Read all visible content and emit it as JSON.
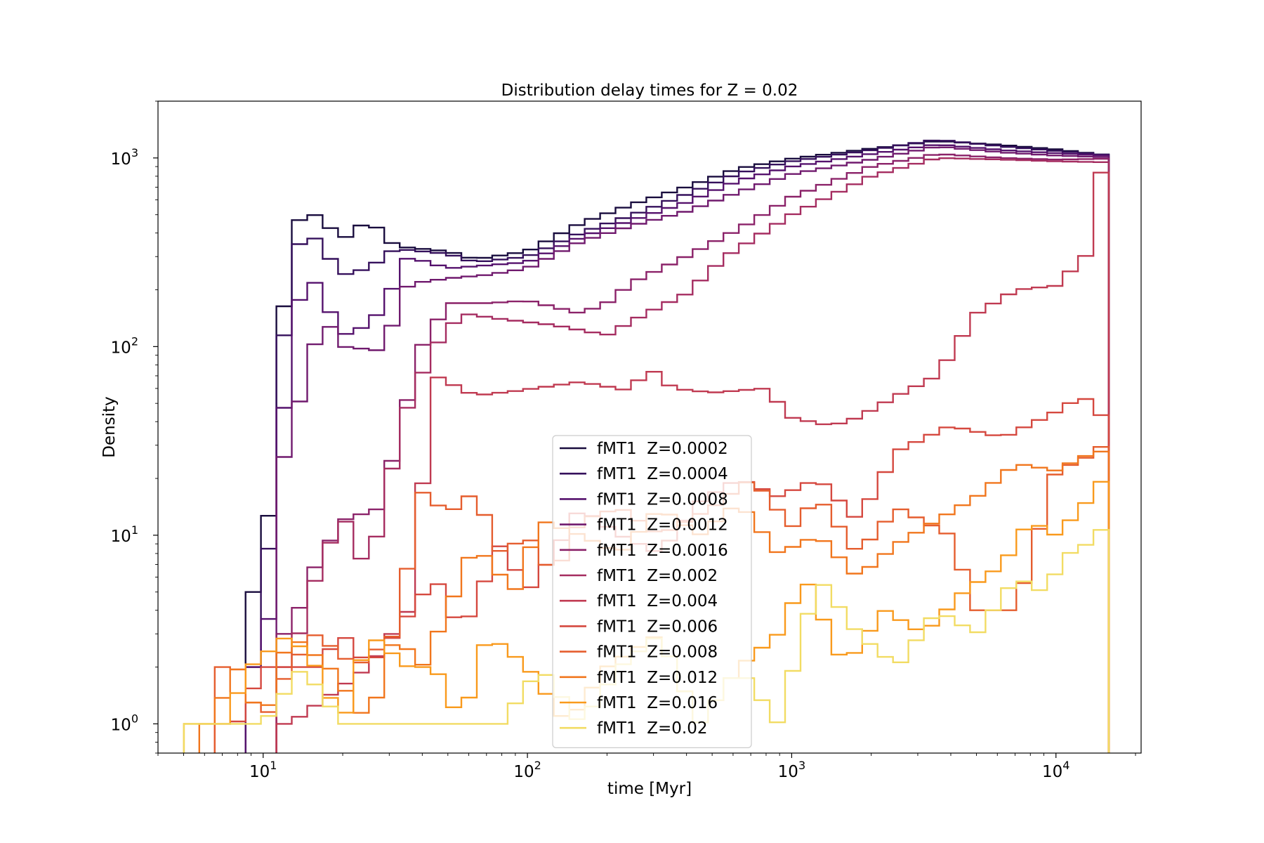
{
  "chart_data": {
    "type": "histogram-step",
    "title": "Distribution delay times for Z = 0.02",
    "xlabel": "time [Myr]",
    "ylabel": "Density",
    "xscale": "log",
    "yscale": "log",
    "xlim": [
      4.0,
      21000
    ],
    "ylim": [
      0.7,
      2000
    ],
    "x_ticks": [
      {
        "value": 10,
        "base": "10",
        "exp": "1"
      },
      {
        "value": 100,
        "base": "10",
        "exp": "2"
      },
      {
        "value": 1000,
        "base": "10",
        "exp": "3"
      },
      {
        "value": 10000,
        "base": "10",
        "exp": "4"
      }
    ],
    "y_ticks": [
      {
        "value": 1,
        "base": "10",
        "exp": "0"
      },
      {
        "value": 10,
        "base": "10",
        "exp": "1"
      },
      {
        "value": 100,
        "base": "10",
        "exp": "2"
      },
      {
        "value": 1000,
        "base": "10",
        "exp": "3"
      }
    ],
    "grid": false,
    "legend_position": "lower center",
    "bin_range_log10": [
      0.7,
      4.2
    ],
    "n_bins": 60,
    "series": [
      {
        "name": "fMT1  Z=0.0002",
        "color": "#190c3e",
        "knots": [
          [
            0.97,
            5
          ],
          [
            1.03,
            15
          ],
          [
            1.1,
            450
          ],
          [
            1.2,
            500
          ],
          [
            1.3,
            370
          ],
          [
            1.4,
            470
          ],
          [
            1.5,
            340
          ],
          [
            1.7,
            320
          ],
          [
            1.8,
            290
          ],
          [
            2.0,
            320
          ],
          [
            2.2,
            450
          ],
          [
            2.4,
            570
          ],
          [
            2.6,
            700
          ],
          [
            2.8,
            880
          ],
          [
            3.0,
            990
          ],
          [
            3.3,
            1120
          ],
          [
            3.55,
            1230
          ],
          [
            3.8,
            1170
          ],
          [
            4.0,
            1110
          ],
          [
            4.18,
            1040
          ]
        ]
      },
      {
        "name": "fMT1  Z=0.0004",
        "color": "#35105c",
        "knots": [
          [
            0.97,
            2
          ],
          [
            1.03,
            11
          ],
          [
            1.1,
            310
          ],
          [
            1.18,
            400
          ],
          [
            1.3,
            240
          ],
          [
            1.4,
            260
          ],
          [
            1.5,
            330
          ],
          [
            1.7,
            310
          ],
          [
            1.8,
            280
          ],
          [
            2.0,
            300
          ],
          [
            2.2,
            400
          ],
          [
            2.4,
            500
          ],
          [
            2.6,
            640
          ],
          [
            2.8,
            830
          ],
          [
            3.0,
            960
          ],
          [
            3.3,
            1100
          ],
          [
            3.55,
            1250
          ],
          [
            3.8,
            1150
          ],
          [
            4.0,
            1090
          ],
          [
            4.18,
            1040
          ]
        ]
      },
      {
        "name": "fMT1  Z=0.0008",
        "color": "#55126d",
        "knots": [
          [
            0.97,
            2
          ],
          [
            1.03,
            4
          ],
          [
            1.1,
            135
          ],
          [
            1.18,
            240
          ],
          [
            1.3,
            115
          ],
          [
            1.4,
            130
          ],
          [
            1.45,
            160
          ],
          [
            1.55,
            300
          ],
          [
            1.7,
            260
          ],
          [
            1.85,
            270
          ],
          [
            2.0,
            280
          ],
          [
            2.2,
            380
          ],
          [
            2.4,
            470
          ],
          [
            2.6,
            580
          ],
          [
            2.8,
            760
          ],
          [
            3.0,
            900
          ],
          [
            3.3,
            1050
          ],
          [
            3.55,
            1180
          ],
          [
            3.8,
            1100
          ],
          [
            4.0,
            1060
          ],
          [
            4.18,
            1030
          ]
        ]
      },
      {
        "name": "fMT1  Z=0.0012",
        "color": "#701a6e",
        "knots": [
          [
            1.1,
            26
          ],
          [
            1.17,
            92
          ],
          [
            1.25,
            130
          ],
          [
            1.3,
            100
          ],
          [
            1.45,
            95
          ],
          [
            1.55,
            215
          ],
          [
            1.7,
            230
          ],
          [
            1.85,
            240
          ],
          [
            2.0,
            260
          ],
          [
            2.2,
            360
          ],
          [
            2.4,
            440
          ],
          [
            2.6,
            520
          ],
          [
            2.8,
            660
          ],
          [
            3.0,
            820
          ],
          [
            3.3,
            980
          ],
          [
            3.55,
            1150
          ],
          [
            3.8,
            1070
          ],
          [
            4.0,
            1030
          ],
          [
            4.18,
            1010
          ]
        ]
      },
      {
        "name": "fMT1  Z=0.0016",
        "color": "#8b2269",
        "knots": [
          [
            1.1,
            3
          ],
          [
            1.2,
            7
          ],
          [
            1.3,
            12
          ],
          [
            1.45,
            14
          ],
          [
            1.5,
            30
          ],
          [
            1.6,
            100
          ],
          [
            1.7,
            170
          ],
          [
            1.85,
            170
          ],
          [
            2.0,
            175
          ],
          [
            2.2,
            150
          ],
          [
            2.3,
            170
          ],
          [
            2.4,
            220
          ],
          [
            2.6,
            300
          ],
          [
            2.8,
            420
          ],
          [
            3.0,
            620
          ],
          [
            3.3,
            900
          ],
          [
            3.55,
            1050
          ],
          [
            3.8,
            1000
          ],
          [
            4.0,
            980
          ],
          [
            4.18,
            990
          ]
        ]
      },
      {
        "name": "fMT1  Z=0.002",
        "color": "#a52c60",
        "knots": [
          [
            1.1,
            2
          ],
          [
            1.2,
            6
          ],
          [
            1.3,
            13
          ],
          [
            1.4,
            6
          ],
          [
            1.45,
            14
          ],
          [
            1.55,
            50
          ],
          [
            1.65,
            100
          ],
          [
            1.75,
            150
          ],
          [
            1.9,
            140
          ],
          [
            2.1,
            130
          ],
          [
            2.3,
            115
          ],
          [
            2.45,
            150
          ],
          [
            2.6,
            190
          ],
          [
            2.75,
            300
          ],
          [
            3.0,
            500
          ],
          [
            3.3,
            800
          ],
          [
            3.55,
            1000
          ],
          [
            3.8,
            980
          ],
          [
            4.0,
            960
          ],
          [
            4.18,
            950
          ]
        ]
      },
      {
        "name": "fMT1  Z=0.004",
        "color": "#c03a51",
        "knots": [
          [
            1.1,
            1
          ],
          [
            1.4,
            2
          ],
          [
            1.55,
            4
          ],
          [
            1.65,
            70
          ],
          [
            1.8,
            55
          ],
          [
            1.95,
            58
          ],
          [
            2.2,
            65
          ],
          [
            2.4,
            58
          ],
          [
            2.45,
            80
          ],
          [
            2.55,
            60
          ],
          [
            2.7,
            57
          ],
          [
            2.9,
            60
          ],
          [
            3.0,
            42
          ],
          [
            3.15,
            38
          ],
          [
            3.25,
            42
          ],
          [
            3.4,
            55
          ],
          [
            3.55,
            70
          ],
          [
            3.7,
            150
          ],
          [
            3.85,
            200
          ],
          [
            4.0,
            210
          ],
          [
            4.12,
            310
          ],
          [
            4.18,
            1000
          ]
        ]
      },
      {
        "name": "fMT1  Z=0.006",
        "color": "#d5483f",
        "knots": [
          [
            0.9,
            1
          ],
          [
            1.0,
            2
          ],
          [
            1.2,
            2
          ],
          [
            1.3,
            3
          ],
          [
            1.4,
            2
          ],
          [
            1.5,
            3
          ],
          [
            1.65,
            6
          ],
          [
            1.75,
            3
          ],
          [
            1.9,
            9
          ],
          [
            2.0,
            5
          ],
          [
            2.1,
            8
          ],
          [
            2.2,
            14
          ],
          [
            2.35,
            10
          ],
          [
            2.5,
            8
          ],
          [
            2.65,
            15
          ],
          [
            2.8,
            20
          ],
          [
            2.95,
            16
          ],
          [
            3.1,
            20
          ],
          [
            3.25,
            12
          ],
          [
            3.4,
            28
          ],
          [
            3.6,
            38
          ],
          [
            3.8,
            33
          ],
          [
            4.0,
            45
          ],
          [
            4.1,
            55
          ],
          [
            4.18,
            42
          ]
        ]
      },
      {
        "name": "fMT1  Z=0.008",
        "color": "#e55d2e",
        "knots": [
          [
            0.9,
            2
          ],
          [
            1.0,
            1
          ],
          [
            1.1,
            2
          ],
          [
            1.2,
            3
          ],
          [
            1.35,
            2
          ],
          [
            1.5,
            3
          ],
          [
            1.6,
            17
          ],
          [
            1.7,
            13
          ],
          [
            1.8,
            17
          ],
          [
            1.9,
            8
          ],
          [
            2.0,
            10
          ],
          [
            2.1,
            6
          ],
          [
            2.2,
            12
          ],
          [
            2.35,
            14
          ],
          [
            2.5,
            10
          ],
          [
            2.7,
            14
          ],
          [
            2.85,
            20
          ],
          [
            3.0,
            11
          ],
          [
            3.1,
            16
          ],
          [
            3.25,
            8
          ],
          [
            3.4,
            14
          ],
          [
            3.6,
            10
          ],
          [
            3.7,
            4
          ],
          [
            3.85,
            4
          ],
          [
            4.0,
            22
          ],
          [
            4.1,
            25
          ],
          [
            4.18,
            30
          ]
        ]
      },
      {
        "name": "fMT1  Z=0.012",
        "color": "#f1761d",
        "knots": [
          [
            0.8,
            1
          ],
          [
            0.9,
            2
          ],
          [
            1.0,
            1
          ],
          [
            1.1,
            3
          ],
          [
            1.25,
            2
          ],
          [
            1.4,
            1
          ],
          [
            1.5,
            3
          ],
          [
            1.6,
            2
          ],
          [
            1.7,
            4
          ],
          [
            1.8,
            9
          ],
          [
            1.95,
            5
          ],
          [
            2.05,
            12
          ],
          [
            2.2,
            10
          ],
          [
            2.35,
            8
          ],
          [
            2.5,
            14
          ],
          [
            2.65,
            10
          ],
          [
            2.8,
            15
          ],
          [
            2.95,
            8
          ],
          [
            3.1,
            10
          ],
          [
            3.25,
            6
          ],
          [
            3.4,
            9
          ],
          [
            3.55,
            12
          ],
          [
            3.7,
            16
          ],
          [
            3.85,
            24
          ],
          [
            4.0,
            22
          ],
          [
            4.1,
            26
          ],
          [
            4.18,
            28
          ]
        ]
      },
      {
        "name": "fMT1  Z=0.016",
        "color": "#f99a1c",
        "knots": [
          [
            0.75,
            1
          ],
          [
            0.85,
            1
          ],
          [
            0.95,
            2
          ],
          [
            1.1,
            3
          ],
          [
            1.2,
            2
          ],
          [
            1.3,
            1
          ],
          [
            1.4,
            3
          ],
          [
            1.55,
            2
          ],
          [
            1.65,
            2
          ],
          [
            1.75,
            1
          ],
          [
            1.85,
            3
          ],
          [
            2.0,
            2
          ],
          [
            2.15,
            1
          ],
          [
            2.3,
            2
          ],
          [
            2.5,
            3
          ],
          [
            2.65,
            1
          ],
          [
            2.8,
            2
          ],
          [
            2.95,
            3
          ],
          [
            3.05,
            6
          ],
          [
            3.2,
            2
          ],
          [
            3.35,
            4
          ],
          [
            3.5,
            3
          ],
          [
            3.65,
            5
          ],
          [
            3.8,
            7
          ],
          [
            3.9,
            12
          ],
          [
            4.0,
            10
          ],
          [
            4.1,
            14
          ],
          [
            4.18,
            20
          ]
        ]
      },
      {
        "name": "fMT1  Z=0.02",
        "color": "#f2dc63",
        "knots": [
          [
            0.7,
            1
          ],
          [
            0.85,
            1
          ],
          [
            1.0,
            1
          ],
          [
            1.15,
            2
          ],
          [
            1.3,
            1
          ],
          [
            1.45,
            1
          ],
          [
            1.6,
            1
          ],
          [
            1.75,
            1
          ],
          [
            1.9,
            1
          ],
          [
            2.05,
            2
          ],
          [
            2.2,
            1
          ],
          [
            2.35,
            2
          ],
          [
            2.5,
            3
          ],
          [
            2.65,
            1
          ],
          [
            2.8,
            2
          ],
          [
            2.95,
            1
          ],
          [
            3.1,
            6
          ],
          [
            3.25,
            3
          ],
          [
            3.4,
            2
          ],
          [
            3.55,
            4
          ],
          [
            3.7,
            3
          ],
          [
            3.85,
            6
          ],
          [
            3.95,
            5
          ],
          [
            4.05,
            8
          ],
          [
            4.12,
            9
          ],
          [
            4.18,
            11
          ]
        ]
      }
    ]
  }
}
